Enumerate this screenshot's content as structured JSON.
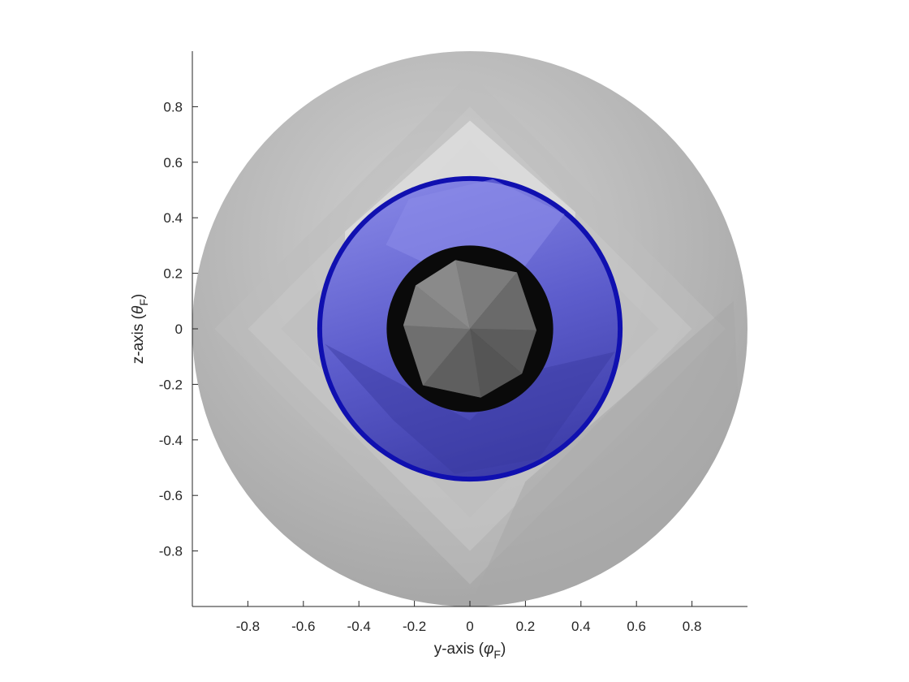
{
  "chart_data": {
    "type": "other",
    "description_type": "3d-surface-projection",
    "xlabel": {
      "prefix": "y-axis (",
      "symbol": "φ",
      "sub": "F",
      "suffix": ")"
    },
    "ylabel": {
      "prefix": "z-axis (",
      "symbol": "θ",
      "sub": "F",
      "suffix": ")"
    },
    "xlim": [
      -1,
      1
    ],
    "ylim": [
      -1,
      1
    ],
    "xticks": [
      -0.8,
      -0.6,
      -0.4,
      -0.2,
      0,
      0.2,
      0.4,
      0.6,
      0.8
    ],
    "xtick_labels": [
      "-0.8",
      "-0.6",
      "-0.4",
      "-0.2",
      "0",
      "0.2",
      "0.4",
      "0.6",
      "0.8"
    ],
    "yticks": [
      0.8,
      0.6,
      0.4,
      0.2,
      0,
      -0.2,
      -0.4,
      -0.6,
      -0.8
    ],
    "ytick_labels": [
      "0.8",
      "0.6",
      "0.4",
      "0.2",
      "0",
      "-0.2",
      "-0.4",
      "-0.6",
      "-0.8"
    ],
    "grid": false,
    "surfaces": [
      {
        "name": "outer sphere",
        "radius": 1.0,
        "color": "#b4b4b4"
      },
      {
        "name": "middle sphere",
        "radius": 0.55,
        "color": "#5a5ad2",
        "edge_color": "#1010b0"
      },
      {
        "name": "inner disk",
        "radius": 0.3,
        "color": "#0a0a0a"
      },
      {
        "name": "inner polyhedron",
        "radius": 0.26,
        "color": "#6e6e6e"
      }
    ]
  }
}
